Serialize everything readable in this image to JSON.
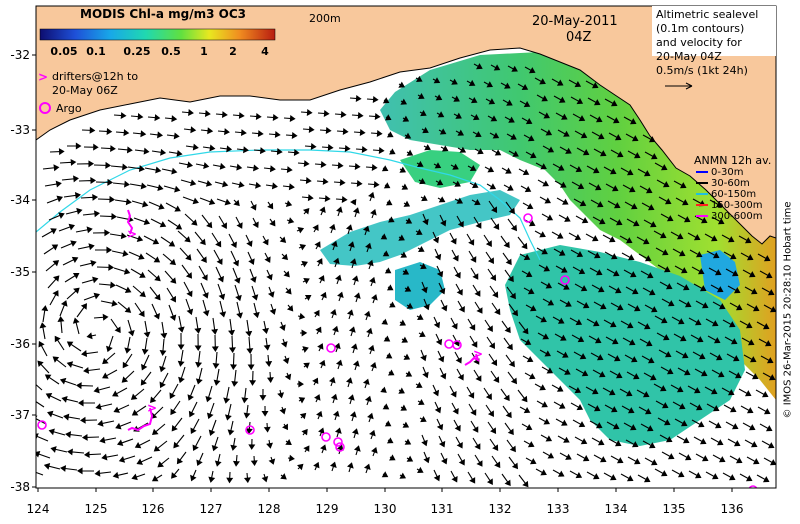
{
  "title": "MODIS Chl-a mg/m3 OC3",
  "colorbar": {
    "ticks": [
      "0.05",
      "0.1",
      "0.25",
      "0.5",
      "1",
      "2",
      "4"
    ],
    "colors": [
      "#1a1a8c",
      "#2060d0",
      "#20b0e0",
      "#20d0a0",
      "#80e040",
      "#f0e020",
      "#f09020",
      "#e04020",
      "#c02010"
    ]
  },
  "date": "20-May-2011",
  "time": "04Z",
  "depth_contour_label": "200m",
  "drifters_note_line1": "drifters@12h to",
  "drifters_note_line2": "20-May 06Z",
  "argo_label": "Argo",
  "altimetry_note": [
    "Altimetric sealevel",
    "(0.1m contours)",
    "and velocity for",
    "20-May 04Z",
    "0.5m/s (1kt 24h)"
  ],
  "anmn": {
    "title": "ANMN 12h av.",
    "items": [
      {
        "label": "0-30m",
        "color": "#0000ff"
      },
      {
        "label": "30-60m",
        "color": "#000000"
      },
      {
        "label": "60-150m",
        "color": "#20c0e0"
      },
      {
        "label": "150-300m",
        "color": "#ff2020"
      },
      {
        "label": "300-600m",
        "color": "#ff00ff"
      }
    ]
  },
  "credit": "© IMOS 26-Mar-2015 20:28:10 Hobart time",
  "lon_ticks": [
    "124",
    "125",
    "126",
    "127",
    "128",
    "129",
    "130",
    "131",
    "132",
    "133",
    "134",
    "135",
    "136"
  ],
  "lat_ticks": [
    "-32",
    "-33",
    "-34",
    "-35",
    "-36",
    "-37",
    "-38"
  ],
  "colors": {
    "land": "#f8c89c",
    "drifter": "#ff00ff",
    "contour": "#30d8e8"
  }
}
